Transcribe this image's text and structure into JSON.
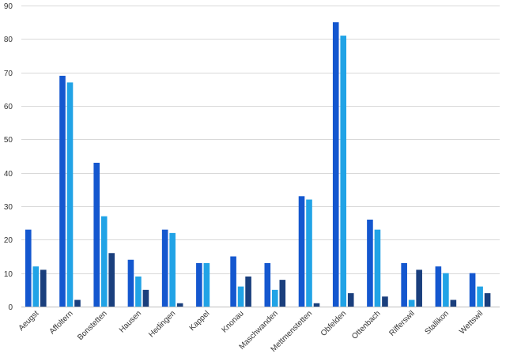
{
  "chart_data": {
    "type": "bar",
    "categories": [
      "Aeugst",
      "Affoltern",
      "Bonstetten",
      "Hausen",
      "Hedingen",
      "Kappel",
      "Knonau",
      "Maschwanden",
      "Mettmenstetten",
      "Obfelden",
      "Ottenbach",
      "Rifferswil",
      "Stallikon",
      "Wettswil"
    ],
    "series": [
      {
        "values": [
          23,
          69,
          43,
          14,
          23,
          13,
          15,
          13,
          33,
          85,
          26,
          13,
          12,
          10
        ],
        "color": "#1457cf"
      },
      {
        "values": [
          12,
          67,
          27,
          9,
          22,
          13,
          6,
          5,
          32,
          81,
          23,
          2,
          10,
          6
        ],
        "color": "#21a3e6"
      },
      {
        "values": [
          11,
          2,
          16,
          5,
          1,
          0,
          9,
          8,
          1,
          4,
          3,
          11,
          2,
          4
        ],
        "color": "#1a3f7d"
      }
    ],
    "ylim": [
      0,
      90
    ],
    "yticks": [
      0,
      10,
      20,
      30,
      40,
      50,
      60,
      70,
      80,
      90
    ],
    "grid": true,
    "legend": "none",
    "title": "",
    "xlabel": "",
    "ylabel": ""
  }
}
